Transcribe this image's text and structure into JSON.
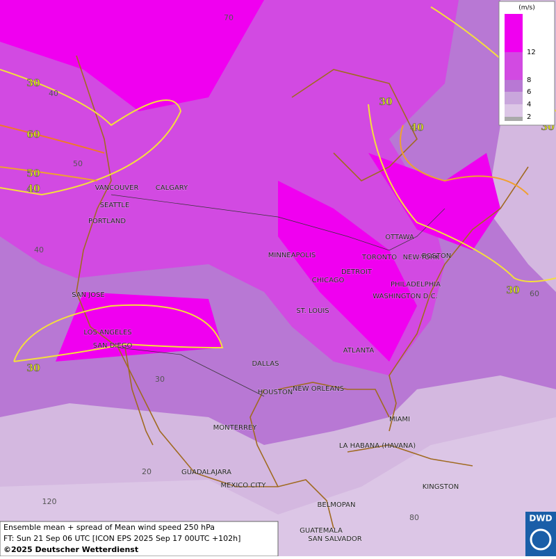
{
  "map": {
    "cities": [
      "VANCOUVER",
      "CALGARY",
      "SEATTLE",
      "PORTLAND",
      "MINNEAPOLIS",
      "TORONTO",
      "OTTAWA",
      "BOSTON",
      "DETROIT",
      "NEW-YORK",
      "CHICAGO",
      "PHILADELPHIA",
      "WASHINGTON D.C.",
      "SAN JOSE",
      "ST. LOUIS",
      "LOS ANGELES",
      "SAN DIEGO",
      "ATLANTA",
      "DALLAS",
      "HOUSTON",
      "NEW ORLEANS",
      "MIAMI",
      "MONTERREY",
      "LA HABANA (HAVANA)",
      "GUADALAJARA",
      "MEXICO CITY",
      "KINGSTON",
      "BELMOPAN",
      "GUATEMALA",
      "SAN SALVADOR"
    ],
    "contour_labels": [
      30,
      60,
      50,
      40,
      30,
      30,
      40,
      30,
      30
    ],
    "grid_labels": [
      70,
      40,
      50,
      40,
      30,
      20,
      120,
      60,
      80
    ],
    "legend": {
      "unit": "(m/s)",
      "ticks": [
        12,
        8,
        6,
        4,
        2
      ]
    },
    "caption": [
      "Ensemble mean + spread of Mean wind speed 250 hPa",
      "FT: Sun 21 Sep 06 UTC [ICON EPS 2025 Sep 17 00UTC +102h]",
      "©2025 Deutscher Wetterdienst"
    ],
    "logo": "DWD"
  }
}
